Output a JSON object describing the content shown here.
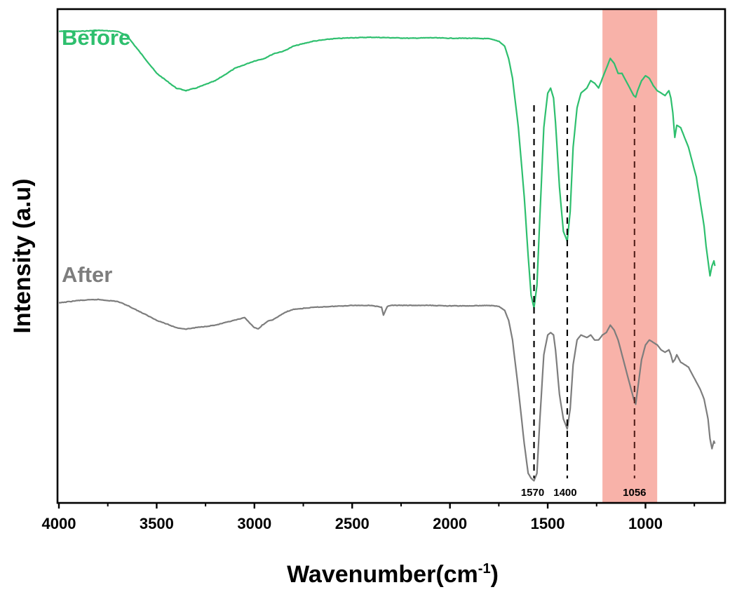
{
  "chart_data": {
    "type": "line",
    "title": "",
    "xlabel": "Wavenumber(cm",
    "xlabel_superscript": "-1",
    "xlabel_close": ")",
    "ylabel": "Intensity (a.u)",
    "xlim": [
      4000,
      600
    ],
    "ylim": [
      0,
      1
    ],
    "x_reversed": true,
    "y_ticks_shown": false,
    "grid": false,
    "xticks": [
      4000,
      3500,
      3000,
      2500,
      2000,
      1500,
      1000
    ],
    "highlight_band": {
      "from": 1220,
      "to": 940,
      "color": "#f7a49a"
    },
    "peak_markers": [
      {
        "x": 1570,
        "label": "1570",
        "color": "#000000"
      },
      {
        "x": 1400,
        "label": "1400",
        "color": "#000000"
      },
      {
        "x": 1056,
        "label": "1056",
        "color": "#8b2a22"
      }
    ],
    "series": [
      {
        "name": "Before",
        "color": "#2ebf6e",
        "x": [
          4000,
          3900,
          3800,
          3700,
          3650,
          3600,
          3500,
          3400,
          3350,
          3300,
          3200,
          3100,
          3000,
          2950,
          2900,
          2850,
          2800,
          2700,
          2600,
          2500,
          2400,
          2300,
          2200,
          2100,
          2000,
          1900,
          1800,
          1750,
          1720,
          1700,
          1680,
          1650,
          1620,
          1600,
          1585,
          1570,
          1555,
          1540,
          1520,
          1500,
          1485,
          1470,
          1460,
          1440,
          1420,
          1400,
          1385,
          1370,
          1350,
          1330,
          1300,
          1280,
          1260,
          1240,
          1220,
          1200,
          1180,
          1160,
          1140,
          1120,
          1100,
          1080,
          1060,
          1050,
          1040,
          1020,
          1000,
          980,
          960,
          940,
          920,
          900,
          880,
          870,
          860,
          850,
          840,
          820,
          800,
          780,
          760,
          740,
          720,
          700,
          690,
          680,
          670,
          660,
          650,
          645
        ],
        "y": [
          0.955,
          0.955,
          0.957,
          0.955,
          0.945,
          0.92,
          0.87,
          0.84,
          0.835,
          0.84,
          0.855,
          0.88,
          0.895,
          0.9,
          0.91,
          0.915,
          0.925,
          0.935,
          0.94,
          0.942,
          0.943,
          0.942,
          0.941,
          0.942,
          0.941,
          0.941,
          0.94,
          0.935,
          0.925,
          0.9,
          0.86,
          0.76,
          0.62,
          0.5,
          0.42,
          0.395,
          0.44,
          0.58,
          0.76,
          0.83,
          0.84,
          0.82,
          0.77,
          0.64,
          0.55,
          0.53,
          0.59,
          0.72,
          0.8,
          0.83,
          0.84,
          0.855,
          0.85,
          0.84,
          0.86,
          0.88,
          0.9,
          0.89,
          0.87,
          0.87,
          0.855,
          0.84,
          0.825,
          0.822,
          0.835,
          0.855,
          0.865,
          0.86,
          0.845,
          0.835,
          0.83,
          0.825,
          0.835,
          0.82,
          0.79,
          0.74,
          0.765,
          0.76,
          0.74,
          0.72,
          0.69,
          0.66,
          0.61,
          0.56,
          0.52,
          0.49,
          0.46,
          0.48,
          0.49,
          0.48
        ]
      },
      {
        "name": "After",
        "color": "#7d7d7d",
        "x": [
          4000,
          3900,
          3800,
          3700,
          3650,
          3600,
          3500,
          3400,
          3350,
          3300,
          3200,
          3100,
          3050,
          3000,
          2980,
          2960,
          2930,
          2900,
          2860,
          2830,
          2800,
          2700,
          2600,
          2500,
          2400,
          2350,
          2340,
          2330,
          2320,
          2300,
          2200,
          2100,
          2000,
          1900,
          1800,
          1750,
          1720,
          1700,
          1680,
          1650,
          1620,
          1600,
          1585,
          1570,
          1555,
          1540,
          1520,
          1500,
          1485,
          1470,
          1460,
          1440,
          1420,
          1400,
          1385,
          1370,
          1350,
          1330,
          1300,
          1280,
          1260,
          1240,
          1220,
          1200,
          1180,
          1160,
          1140,
          1120,
          1100,
          1080,
          1060,
          1050,
          1040,
          1020,
          1000,
          980,
          960,
          940,
          920,
          900,
          880,
          870,
          860,
          850,
          840,
          820,
          800,
          780,
          760,
          740,
          720,
          700,
          690,
          680,
          670,
          660,
          650,
          645
        ],
        "y": [
          0.405,
          0.41,
          0.412,
          0.408,
          0.4,
          0.39,
          0.37,
          0.355,
          0.352,
          0.355,
          0.36,
          0.37,
          0.375,
          0.355,
          0.352,
          0.36,
          0.368,
          0.372,
          0.382,
          0.388,
          0.392,
          0.396,
          0.398,
          0.4,
          0.4,
          0.396,
          0.38,
          0.39,
          0.398,
          0.4,
          0.4,
          0.4,
          0.399,
          0.399,
          0.4,
          0.398,
          0.39,
          0.37,
          0.33,
          0.23,
          0.12,
          0.06,
          0.05,
          0.045,
          0.06,
          0.17,
          0.3,
          0.34,
          0.345,
          0.34,
          0.31,
          0.22,
          0.17,
          0.15,
          0.19,
          0.28,
          0.33,
          0.34,
          0.335,
          0.34,
          0.33,
          0.33,
          0.34,
          0.345,
          0.36,
          0.35,
          0.33,
          0.3,
          0.27,
          0.24,
          0.21,
          0.2,
          0.23,
          0.29,
          0.32,
          0.33,
          0.325,
          0.32,
          0.31,
          0.305,
          0.31,
          0.3,
          0.285,
          0.29,
          0.3,
          0.285,
          0.28,
          0.275,
          0.26,
          0.245,
          0.23,
          0.21,
          0.19,
          0.17,
          0.13,
          0.11,
          0.125,
          0.12
        ]
      }
    ]
  }
}
